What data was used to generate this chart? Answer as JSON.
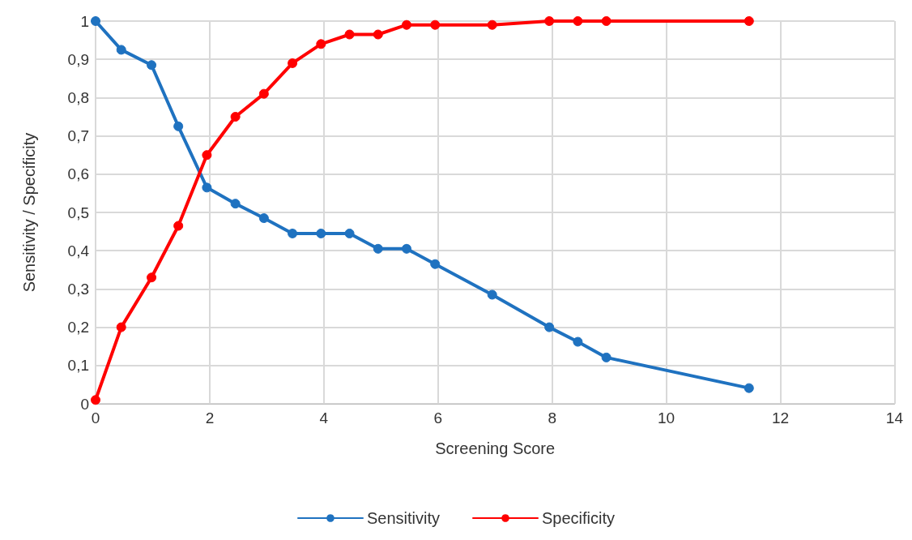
{
  "chart_data": {
    "type": "line",
    "xlabel": "Screening Score",
    "ylabel": "Sensitivity / Specificity",
    "x": [
      0,
      0.45,
      0.98,
      1.45,
      1.95,
      2.45,
      2.95,
      3.45,
      3.95,
      4.45,
      4.95,
      5.45,
      5.95,
      6.95,
      7.95,
      8.45,
      8.95,
      11.45
    ],
    "series": [
      {
        "name": "Sensitivity",
        "color": "#1f72c0",
        "values": [
          1,
          0.925,
          0.885,
          0.725,
          0.565,
          0.523,
          0.485,
          0.445,
          0.445,
          0.445,
          0.405,
          0.405,
          0.365,
          0.285,
          0.2,
          0.162,
          0.121,
          0.041
        ]
      },
      {
        "name": "Specificity",
        "color": "#ff0000",
        "values": [
          0.01,
          0.2,
          0.33,
          0.465,
          0.65,
          0.75,
          0.81,
          0.89,
          0.94,
          0.965,
          0.965,
          0.99,
          0.99,
          0.99,
          1,
          1,
          1,
          1
        ]
      }
    ],
    "xlim": [
      0,
      14
    ],
    "xticks": [
      0,
      2,
      4,
      6,
      8,
      10,
      12,
      14
    ],
    "ylim": [
      0,
      1
    ],
    "yticks": [
      0,
      {
        "value": 0.1,
        "label": "0,1"
      },
      {
        "value": 0.2,
        "label": "0,2"
      },
      {
        "value": 0.3,
        "label": "0,3"
      },
      {
        "value": 0.4,
        "label": "0,4"
      },
      {
        "value": 0.5,
        "label": "0,5"
      },
      {
        "value": 0.6,
        "label": "0,6"
      },
      {
        "value": 0.7,
        "label": "0,7"
      },
      {
        "value": 0.8,
        "label": "0,8"
      },
      {
        "value": 0.9,
        "label": "0,9"
      },
      1
    ],
    "grid": true,
    "legend": "bottom",
    "marker": "circle",
    "line_style": "solid"
  }
}
